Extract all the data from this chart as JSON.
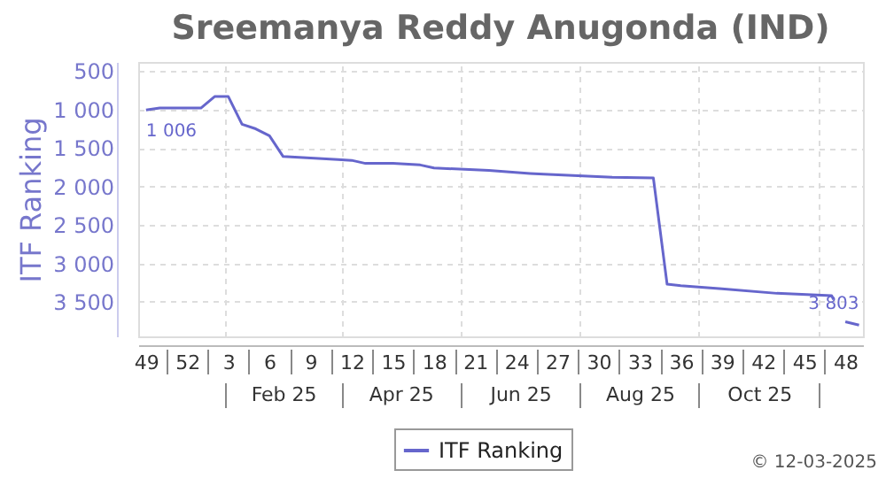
{
  "chart_data": {
    "type": "line",
    "title": "Sreemanya Reddy Anugonda (IND)",
    "ylabel": "ITF Ranking",
    "x": [
      "2024-12-02",
      "2024-12-09",
      "2024-12-30",
      "2025-01-06",
      "2025-01-13",
      "2025-01-20",
      "2025-01-27",
      "2025-02-03",
      "2025-02-10",
      "2025-02-24",
      "2025-03-10",
      "2025-03-17",
      "2025-03-24",
      "2025-04-07",
      "2025-04-21",
      "2025-04-28",
      "2025-05-26",
      "2025-06-16",
      "2025-06-23",
      "2025-07-28",
      "2025-08-18",
      "2025-08-25",
      "2025-09-01",
      "2025-09-22",
      "2025-10-20",
      "2025-11-17",
      "2025-11-18",
      "2025-11-21",
      "2025-11-24",
      "2025-12-01"
    ],
    "series": [
      {
        "name": "ITF Ranking",
        "color": "#6666cc",
        "values": [
          1006,
          980,
          980,
          830,
          830,
          1190,
          1250,
          1340,
          1610,
          1630,
          1650,
          1660,
          1700,
          1700,
          1720,
          1760,
          1790,
          1830,
          1840,
          1880,
          1890,
          3270,
          3290,
          3330,
          3390,
          3420,
          3470,
          null,
          3760,
          3803
        ],
        "value_labels": [
          "1 006",
          null,
          null,
          null,
          null,
          null,
          null,
          null,
          null,
          null,
          null,
          null,
          null,
          null,
          null,
          null,
          null,
          null,
          null,
          null,
          null,
          null,
          null,
          null,
          null,
          null,
          null,
          null,
          null,
          "3 803"
        ]
      }
    ],
    "ylim": [
      3950,
      380
    ],
    "yticks": [
      500,
      {
        "value": 1000,
        "label": "1 000"
      },
      {
        "value": 1500,
        "label": "1 500"
      },
      {
        "value": 2000,
        "label": "2 000"
      },
      {
        "value": 2500,
        "label": "2 500"
      },
      {
        "value": 3000,
        "label": "3 000"
      },
      {
        "value": 3500,
        "label": "3 500"
      }
    ],
    "xlim": [
      "2024-11-28",
      "2025-12-03"
    ],
    "xticks": [
      {
        "value": "2024-12-02",
        "label": "49"
      },
      {
        "value": "2024-12-23",
        "label": "52"
      },
      {
        "value": "2025-01-13",
        "label": "3"
      },
      {
        "value": "2025-02-03",
        "label": "6"
      },
      {
        "value": "2025-02-24",
        "label": "9"
      },
      {
        "value": "2025-03-17",
        "label": "12"
      },
      {
        "value": "2025-04-07",
        "label": "15"
      },
      {
        "value": "2025-04-28",
        "label": "18"
      },
      {
        "value": "2025-05-19",
        "label": "21"
      },
      {
        "value": "2025-06-09",
        "label": "24"
      },
      {
        "value": "2025-06-30",
        "label": "27"
      },
      {
        "value": "2025-07-21",
        "label": "30"
      },
      {
        "value": "2025-08-11",
        "label": "33"
      },
      {
        "value": "2025-09-01",
        "label": "36"
      },
      {
        "value": "2025-09-22",
        "label": "39"
      },
      {
        "value": "2025-10-13",
        "label": "42"
      },
      {
        "value": "2025-11-03",
        "label": "45"
      },
      {
        "value": "2025-11-24",
        "label": "48"
      },
      {
        "value": "2024-12-12T12:00",
        "label": null
      },
      {
        "value": "2025-01-02T12:00",
        "label": null
      },
      {
        "value": "2025-01-23T12:00",
        "label": null
      },
      {
        "value": "2025-02-13T12:00",
        "label": null
      },
      {
        "value": "2025-03-06T12:00",
        "label": null
      },
      {
        "value": "2025-03-27T12:00",
        "label": null
      },
      {
        "value": "2025-04-17T12:00",
        "label": null
      },
      {
        "value": "2025-05-08T12:00",
        "label": null
      },
      {
        "value": "2025-05-29T12:00",
        "label": null
      },
      {
        "value": "2025-06-19T12:00",
        "label": null
      },
      {
        "value": "2025-07-10T12:00",
        "label": null
      },
      {
        "value": "2025-07-31T12:00",
        "label": null
      },
      {
        "value": "2025-08-21T12:00",
        "label": null
      },
      {
        "value": "2025-09-11T12:00",
        "label": null
      },
      {
        "value": "2025-10-02T12:00",
        "label": null
      },
      {
        "value": "2025-10-23T12:00",
        "label": null
      },
      {
        "value": "2025-11-13T12:00",
        "label": null
      }
    ],
    "x2lim": [
      "2024-11-28",
      "2025-12-03"
    ],
    "x2ticks": [
      {
        "value": "2025-02-10",
        "label": "Feb 25"
      },
      {
        "value": "2025-04-11",
        "label": "Apr 25"
      },
      {
        "value": "2025-06-11",
        "label": "Jun 25"
      },
      {
        "value": "2025-08-11",
        "label": "Aug 25"
      },
      {
        "value": "2025-10-11",
        "label": "Oct 25"
      },
      {
        "value": "2025-01-11",
        "label": null
      },
      {
        "value": "2025-03-12",
        "label": null
      },
      {
        "value": "2025-05-12",
        "label": null
      },
      {
        "value": "2025-07-11",
        "label": null
      },
      {
        "value": "2025-09-10",
        "label": null
      },
      {
        "value": "2025-11-10",
        "label": null
      }
    ],
    "grid": true,
    "legend": "bottom",
    "marker": "none",
    "line_style": "solid",
    "annotations": [
      "© 12-03-2025"
    ]
  }
}
